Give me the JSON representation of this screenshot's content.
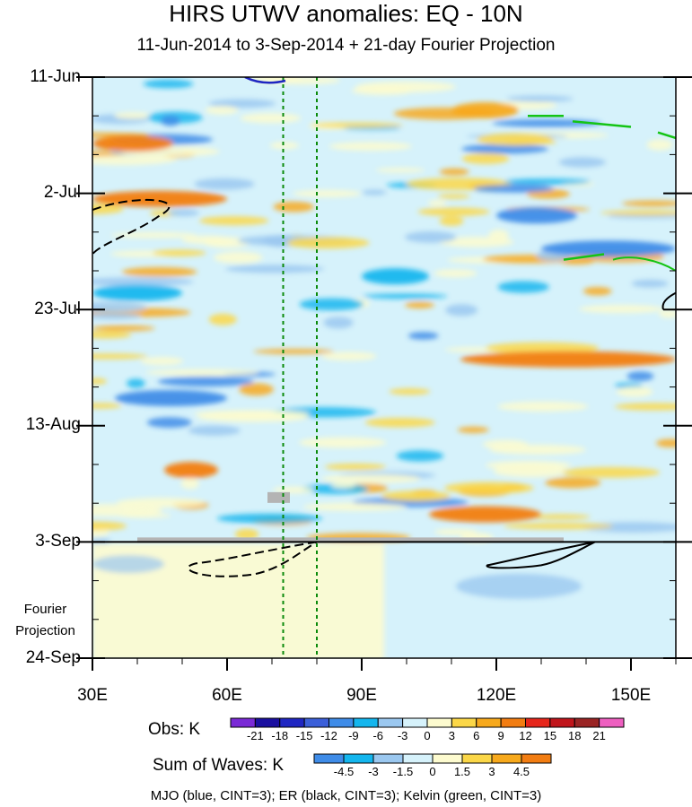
{
  "chart_data": {
    "type": "heatmap",
    "title": "HIRS UTWV anomalies: EQ - 10N",
    "subtitle": "11-Jun-2014 to 3-Sep-2014 + 21-day Fourier Projection",
    "x_tick_labels": [
      "30E",
      "60E",
      "90E",
      "120E",
      "150E"
    ],
    "x_range": [
      30,
      160
    ],
    "y_tick_labels": [
      "11-Jun",
      "2-Jul",
      "23-Jul",
      "13-Aug",
      "3-Sep",
      "24-Sep"
    ],
    "projection_start": "3-Sep",
    "projection_label_line1": "Fourier",
    "projection_label_line2": "Projection",
    "reference_lines_lon": [
      72.5,
      80
    ],
    "obs_colorbar": {
      "title": "Obs: K",
      "levels": [
        "-21",
        "-18",
        "-15",
        "-12",
        "-9",
        "-6",
        "-3",
        "0",
        "3",
        "6",
        "9",
        "12",
        "15",
        "18",
        "21"
      ],
      "colors": [
        "#7a2ad6",
        "#1a0fa0",
        "#1f26c2",
        "#3b5fd9",
        "#3f8ce8",
        "#14b6ee",
        "#9bc8f0",
        "#d6f2fb",
        "#fdfbcf",
        "#fbd748",
        "#f7a91c",
        "#f27d12",
        "#e6261b",
        "#c0151b",
        "#9a2424",
        "#ee5fc0"
      ]
    },
    "waves_colorbar": {
      "title": "Sum of Waves: K",
      "levels": [
        "-4.5",
        "-3",
        "-1.5",
        "0",
        "1.5",
        "3",
        "4.5"
      ],
      "colors": [
        "#3f8ce8",
        "#14b6ee",
        "#9bc8f0",
        "#d6f2fb",
        "#fdfbcf",
        "#fbd748",
        "#f7a91c",
        "#f27d12"
      ]
    },
    "overlay_legend": "MJO (blue, CINT=3); ER (black, CINT=3); Kelvin (green, CINT=3)",
    "overlay_colors": {
      "mjo": "#1f26c2",
      "er": "#000000",
      "kelvin": "#14c414",
      "reference": "#0a8a0a"
    },
    "anomaly_features": [
      {
        "lon": [
          30,
          48
        ],
        "date": "23-Jun",
        "value": 4.5
      },
      {
        "lon": [
          30,
          60
        ],
        "date": "3-Jul",
        "value": 4.5
      },
      {
        "lon": [
          46,
          58
        ],
        "date": "21-Aug",
        "value": 4.5
      },
      {
        "lon": [
          110,
          125
        ],
        "date": "17-Jun",
        "value": 3
      },
      {
        "lon": [
          112,
          160
        ],
        "date": "1-Aug",
        "value": 4.5
      },
      {
        "lon": [
          105,
          130
        ],
        "date": "29-Aug",
        "value": 4.5
      },
      {
        "lon": [
          120,
          138
        ],
        "date": "6-Jul",
        "value": -4.5
      },
      {
        "lon": [
          130,
          160
        ],
        "date": "12-Jul",
        "value": -4.5
      },
      {
        "lon": [
          35,
          60
        ],
        "date": "8-Aug",
        "value": -4.5
      },
      {
        "lon": [
          30,
          50
        ],
        "date": "20-Jul",
        "value": -3
      },
      {
        "lon": [
          90,
          105
        ],
        "date": "17-Jul",
        "value": -3
      }
    ]
  }
}
